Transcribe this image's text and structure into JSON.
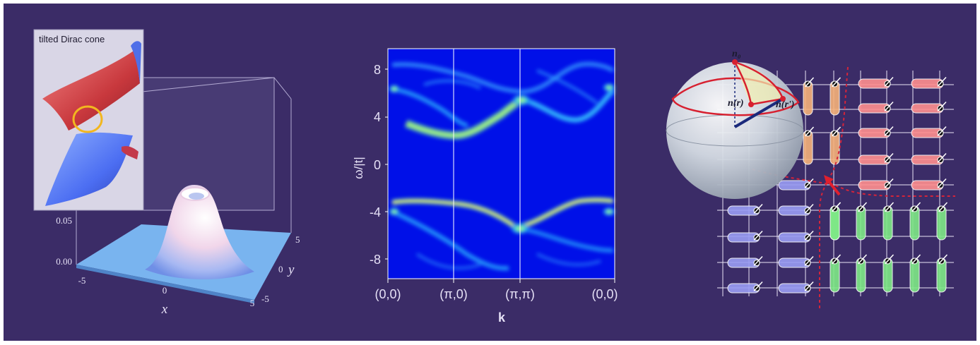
{
  "panel_left": {
    "inset_label": "tilted Dirac cone",
    "z_ticks": [
      "0.05",
      "0.00"
    ],
    "x_ticks": [
      "-5",
      "0",
      "5"
    ],
    "y_ticks": [
      "5",
      "0",
      "-5"
    ],
    "x_label": "x",
    "y_label": "y"
  },
  "panel_middle": {
    "y_ticks": [
      "8",
      "4",
      "0",
      "-4",
      "-8"
    ],
    "x_ticks": [
      "(0,0)",
      "(π,0)",
      "(π,π)",
      "(0,0)"
    ],
    "y_label": "ω/|t|",
    "x_label": "k"
  },
  "panel_right": {
    "sphere_labels": [
      "n₀",
      "n(r)",
      "n(r')"
    ]
  },
  "colors": {
    "background": "#3b2c67",
    "spectral_bg": "#0010e8",
    "pink_bond": "#ff8f8f",
    "orange_bond": "#f6b27a",
    "blue_bond": "#9a9cf3",
    "green_bond": "#7fe987"
  }
}
